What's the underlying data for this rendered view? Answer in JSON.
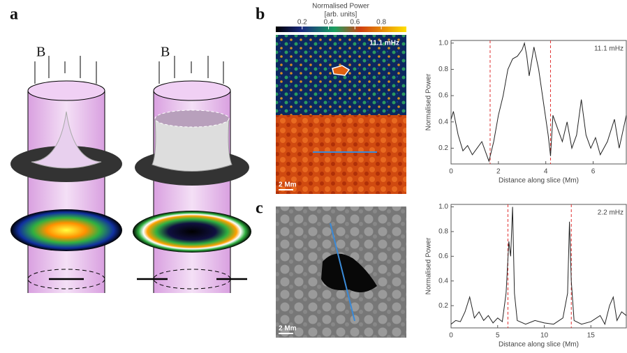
{
  "panel_labels": [
    "a",
    "b",
    "c"
  ],
  "field_label": "B",
  "colorbar": {
    "title": "Normalised Power",
    "units": "[arb. units]",
    "lim": [
      0,
      0.99
    ],
    "ticks": [
      0.2,
      0.4,
      0.6,
      0.8
    ]
  },
  "image_label": "11.1 mHz",
  "scale_bar": "2 Mm",
  "chart_data": [
    {
      "type": "line",
      "annotation": "11.1 mHz",
      "xlabel": "Distance along slice (Mm)",
      "ylabel": "Normalised Power",
      "xlim": [
        0,
        7.4
      ],
      "ylim": [
        0.08,
        1.02
      ],
      "xticks": [
        0,
        2,
        4,
        6
      ],
      "yticks": [
        0.2,
        0.4,
        0.6,
        0.8,
        {
          "value": 1,
          "label": "1.0"
        }
      ],
      "markers": [
        1.65,
        4.2
      ],
      "marker_color": "#e03030",
      "color": "#222222",
      "x": [
        0,
        0.1,
        0.3,
        0.5,
        0.7,
        0.9,
        1.1,
        1.3,
        1.5,
        1.6,
        1.8,
        2.0,
        2.2,
        2.4,
        2.6,
        2.8,
        3.0,
        3.1,
        3.2,
        3.3,
        3.5,
        3.7,
        3.9,
        4.1,
        4.2,
        4.3,
        4.5,
        4.7,
        4.9,
        5.1,
        5.3,
        5.5,
        5.7,
        5.9,
        6.1,
        6.3,
        6.6,
        6.9,
        7.1,
        7.4
      ],
      "values": [
        0.42,
        0.48,
        0.3,
        0.18,
        0.22,
        0.15,
        0.2,
        0.25,
        0.15,
        0.1,
        0.25,
        0.45,
        0.6,
        0.8,
        0.88,
        0.9,
        0.95,
        1.0,
        0.9,
        0.75,
        0.97,
        0.8,
        0.55,
        0.3,
        0.14,
        0.45,
        0.35,
        0.25,
        0.4,
        0.2,
        0.3,
        0.57,
        0.3,
        0.2,
        0.28,
        0.15,
        0.25,
        0.42,
        0.2,
        0.45
      ]
    },
    {
      "type": "line",
      "annotation": "2.2 mHz",
      "xlabel": "Distance along slice (Mm)",
      "ylabel": "Normalised Power",
      "xlim": [
        0,
        18.8
      ],
      "ylim": [
        0.02,
        1.02
      ],
      "xticks": [
        0,
        5,
        10,
        15
      ],
      "yticks": [
        0.2,
        0.4,
        0.6,
        0.8,
        {
          "value": 1,
          "label": "1.0"
        }
      ],
      "markers": [
        6.1,
        12.9
      ],
      "marker_color": "#e03030",
      "color": "#222222",
      "x": [
        0,
        0.5,
        1,
        1.5,
        2,
        2.5,
        3,
        3.5,
        4,
        4.5,
        5,
        5.5,
        5.9,
        6.2,
        6.4,
        6.6,
        6.8,
        7.1,
        8,
        9,
        10,
        11,
        12,
        12.5,
        12.7,
        12.9,
        13.2,
        14,
        15,
        16,
        16.5,
        17,
        17.4,
        17.8,
        18.3,
        18.8
      ],
      "values": [
        0.05,
        0.08,
        0.07,
        0.15,
        0.27,
        0.1,
        0.15,
        0.08,
        0.12,
        0.06,
        0.1,
        0.07,
        0.3,
        0.72,
        0.6,
        1.0,
        0.3,
        0.08,
        0.05,
        0.08,
        0.06,
        0.05,
        0.1,
        0.3,
        0.88,
        0.4,
        0.08,
        0.05,
        0.07,
        0.12,
        0.05,
        0.2,
        0.27,
        0.08,
        0.15,
        0.12
      ]
    }
  ]
}
